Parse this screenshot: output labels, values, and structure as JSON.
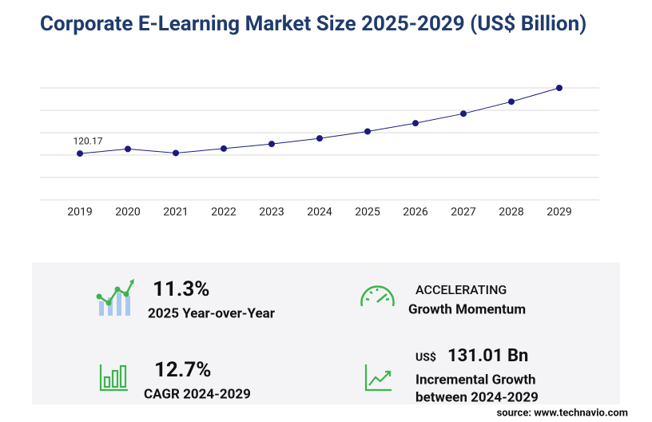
{
  "chart_data": {
    "type": "line",
    "title": "Corporate E-Learning Market Size 2025-2029 (US$ Billion)",
    "categories": [
      "2019",
      "2020",
      "2021",
      "2022",
      "2023",
      "2024",
      "2025",
      "2026",
      "2027",
      "2028",
      "2029"
    ],
    "values": [
      120.17,
      131.9,
      121.5,
      133.0,
      145.0,
      159.5,
      177.5,
      198.9,
      223.7,
      254.8,
      290.51
    ],
    "value_labels": [
      "120.17",
      null,
      null,
      null,
      null,
      null,
      null,
      null,
      null,
      null,
      null
    ],
    "color": "#1a1a80",
    "ylim": [
      0,
      290.51
    ],
    "grid": true
  },
  "panel": {
    "stats": [
      {
        "value": "11.3%",
        "label": "2025 Year-over-Year"
      },
      {
        "value": "ACCELERATING",
        "label": "Growth Momentum"
      },
      {
        "value": "12.7%",
        "label": "CAGR 2024-2029"
      },
      {
        "prefix": "US$",
        "value": "131.01 Bn",
        "label": "Incremental Growth",
        "label2": "between 2024-2029"
      }
    ],
    "source": "source: www.technavio.com"
  }
}
